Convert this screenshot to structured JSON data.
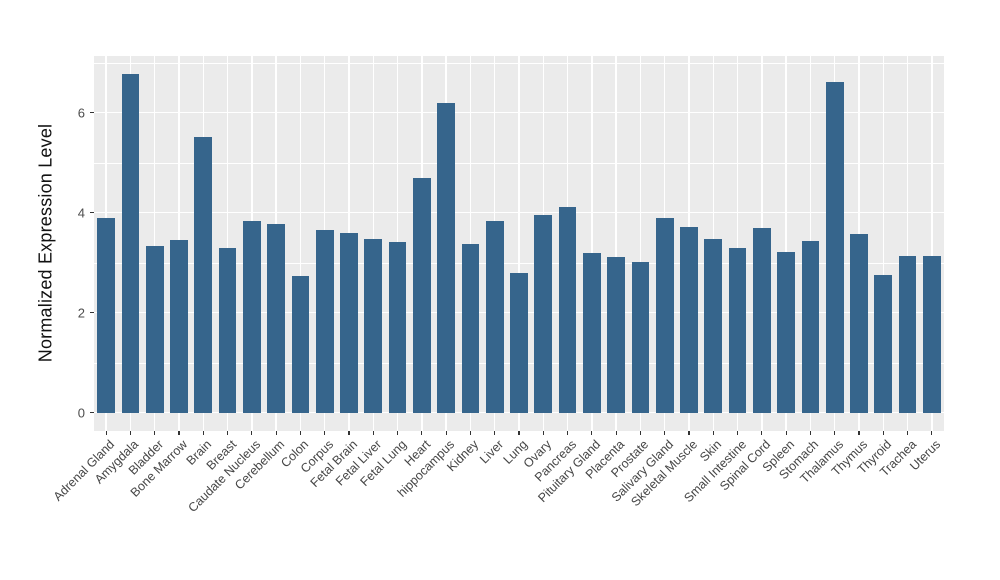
{
  "chart_data": {
    "type": "bar",
    "title": "",
    "xlabel": "",
    "ylabel": "Normalized Expression Level",
    "categories": [
      "Adrenal Gland",
      "Amygdala",
      "Bladder",
      "Bone Marrow",
      "Brain",
      "Breast",
      "Caudate Nucleus",
      "Cerebellum",
      "Colon",
      "Corpus",
      "Fetal Brain",
      "Fetal Liver",
      "Fetal Lung",
      "Heart",
      "hippocampus",
      "Kidney",
      "Liver",
      "Lung",
      "Ovary",
      "Pancreas",
      "Pituitary Gland",
      "Placenta",
      "Prostate",
      "Salivary Gland",
      "Skeletal Muscle",
      "Skin",
      "Small Intestine",
      "Spinal Cord",
      "Spleen",
      "Stomach",
      "Thalamus",
      "Thymus",
      "Thyroid",
      "Trachea",
      "Uterus"
    ],
    "values": [
      3.9,
      6.77,
      3.34,
      3.46,
      5.52,
      3.3,
      3.84,
      3.78,
      2.73,
      3.65,
      3.59,
      3.47,
      3.42,
      4.7,
      6.19,
      3.37,
      3.83,
      2.79,
      3.95,
      4.12,
      3.2,
      3.12,
      3.01,
      3.89,
      3.71,
      3.48,
      3.3,
      3.7,
      3.21,
      3.43,
      6.61,
      3.57,
      2.75,
      3.14,
      3.13
    ],
    "ylim": [
      0,
      7.13
    ],
    "yticks": [
      0,
      2,
      4,
      6
    ],
    "ytick_labels": [
      "0",
      "2",
      "4",
      "6"
    ],
    "minor_gridlines": [
      1,
      3,
      5,
      7
    ],
    "grid": true,
    "legend": false,
    "bar_color": "#36658C",
    "panel_background": "#EBEBEB",
    "gridline_color": "#FFFFFF",
    "tick_color": "#333333",
    "axis_text_color": "#4D4D4D"
  }
}
